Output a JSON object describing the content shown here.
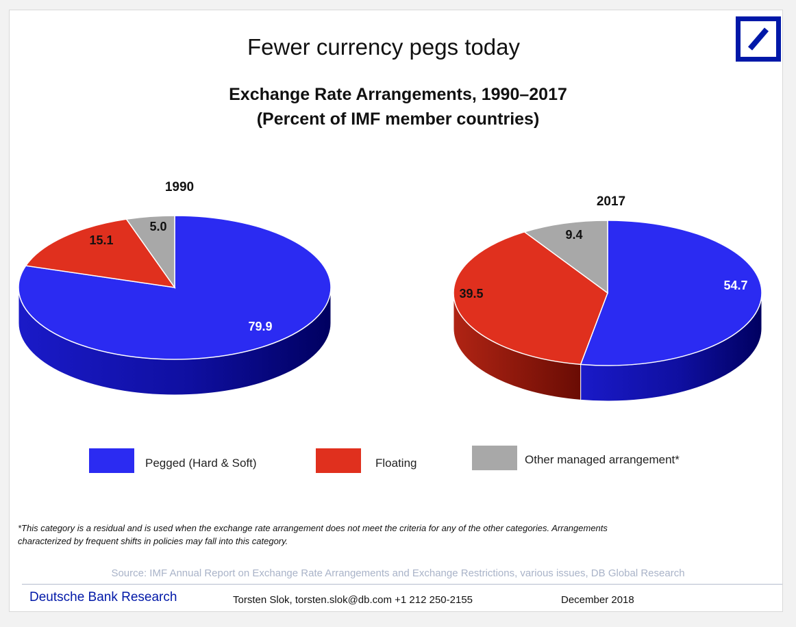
{
  "page": {
    "title": "Fewer currency pegs today",
    "footnote_lines": [
      "*This category is a residual and is used when the exchange rate arrangement does not meet the criteria for any of the other categories. Arrangements",
      "characterized by frequent shifts in policies may fall into this category."
    ],
    "source": "Source: IMF Annual Report on Exchange Rate Arrangements and Exchange Restrictions, various issues, DB Global Research",
    "footer": {
      "brand": "Deutsche Bank Research",
      "author": "Torsten Slok, torsten.slok@db.com  +1 212 250-2155",
      "date": "December 2018"
    },
    "logo_icon": "deutsche-bank-slash-square-icon"
  },
  "colors": {
    "pegged": "#2b2bf2",
    "floating": "#e0301e",
    "other": "#a8a8a8",
    "brand": "#0018a8"
  },
  "chart_data": {
    "type": "pie",
    "title": "Exchange Rate Arrangements, 1990–2017",
    "subtitle": "(Percent of IMF member countries)",
    "legend": [
      "Pegged (Hard & Soft)",
      "Floating",
      "Other managed arrangement*"
    ],
    "legend_position": "bottom",
    "charts": [
      {
        "label": "1990",
        "values": [
          79.9,
          15.1,
          5.0
        ],
        "value_labels": [
          "79.9",
          "15.1",
          "5.0"
        ]
      },
      {
        "label": "2017",
        "values": [
          54.7,
          39.5,
          9.4
        ],
        "value_labels": [
          "54.7",
          "39.5",
          "9.4"
        ]
      }
    ]
  }
}
